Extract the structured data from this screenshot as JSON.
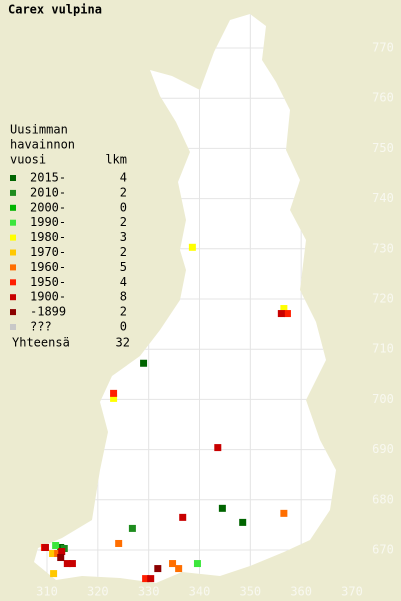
{
  "map": {
    "type": "map",
    "title": "Carex vulpina",
    "legend_heading": [
      "Uusimman",
      "havainnon",
      "vuosi"
    ],
    "count_heading": "lkm",
    "total_label": "Yhteensä",
    "total": 32,
    "xticks": [
      310,
      320,
      330,
      340,
      350,
      360,
      370
    ],
    "yticks": [
      670,
      680,
      690,
      700,
      710,
      720,
      730,
      740,
      750,
      760,
      770
    ],
    "grid": true,
    "series": [
      {
        "name": "2015-",
        "color": "#006400",
        "count": 4,
        "points": [
          [
            328.9,
            707.3
          ],
          [
            344.4,
            678.4
          ],
          [
            348.4,
            675.6
          ],
          [
            312.6,
            670.6
          ]
        ]
      },
      {
        "name": "2010-",
        "color": "#1e8c1e",
        "count": 2,
        "points": [
          [
            326.7,
            674.4
          ],
          [
            313.3,
            670.4
          ]
        ]
      },
      {
        "name": "2000-",
        "color": "#00b400",
        "count": 0,
        "points": []
      },
      {
        "name": "1990-",
        "color": "#3ce63c",
        "count": 2,
        "points": [
          [
            339.5,
            667.4
          ],
          [
            311.6,
            671.0
          ]
        ]
      },
      {
        "name": "1980-",
        "color": "#ffff00",
        "count": 3,
        "points": [
          [
            338.5,
            730.4
          ],
          [
            356.5,
            718.2
          ],
          [
            323.0,
            700.3
          ]
        ]
      },
      {
        "name": "1970-",
        "color": "#ffc800",
        "count": 2,
        "points": [
          [
            311.2,
            665.4
          ],
          [
            311.0,
            669.4
          ]
        ]
      },
      {
        "name": "1960-",
        "color": "#ff6e00",
        "count": 5,
        "points": [
          [
            356.5,
            677.4
          ],
          [
            324.0,
            671.4
          ],
          [
            334.6,
            667.4
          ],
          [
            335.8,
            666.4
          ],
          [
            312.0,
            669.4
          ]
        ]
      },
      {
        "name": "1950-",
        "color": "#ff1e00",
        "count": 4,
        "points": [
          [
            357.2,
            717.2
          ],
          [
            323.0,
            701.3
          ],
          [
            329.3,
            664.4
          ],
          [
            309.4,
            670.6
          ]
        ]
      },
      {
        "name": "1900-",
        "color": "#c80000",
        "count": 8,
        "points": [
          [
            336.6,
            676.6
          ],
          [
            343.5,
            690.5
          ],
          [
            313.9,
            667.4
          ],
          [
            314.9,
            667.4
          ],
          [
            309.6,
            670.6
          ],
          [
            330.3,
            664.4
          ],
          [
            312.8,
            669.8
          ],
          [
            356.0,
            717.2
          ]
        ]
      },
      {
        "name": "-1899",
        "color": "#8b0000",
        "count": 2,
        "points": [
          [
            331.7,
            666.4
          ],
          [
            312.6,
            668.6
          ]
        ]
      },
      {
        "name": "???",
        "color": "#c8c8c8",
        "count": 0,
        "points": []
      }
    ]
  }
}
